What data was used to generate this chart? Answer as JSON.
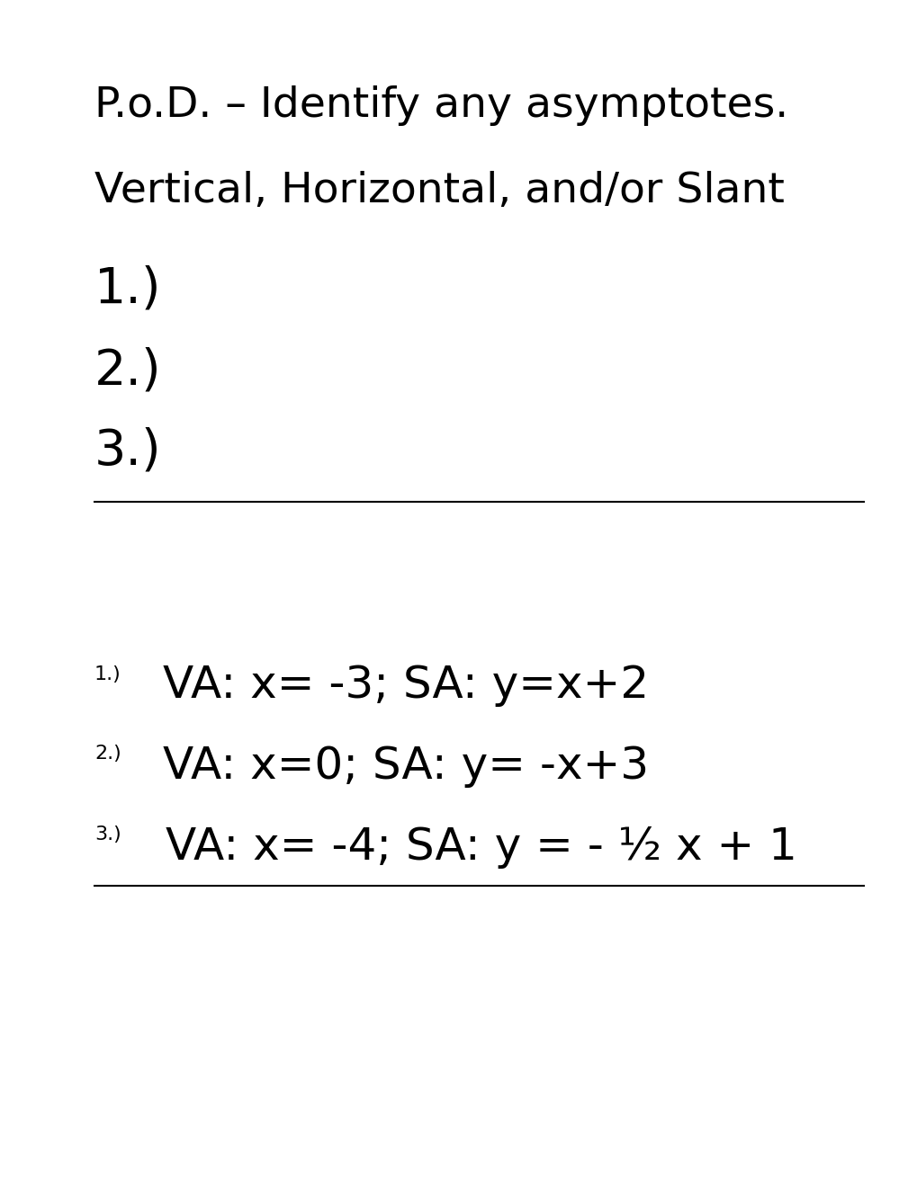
{
  "background_color": "#ffffff",
  "title_line1": "P.o.D. – Identify any asymptotes.",
  "title_line2": "Vertical, Horizontal, and/or Slant",
  "items": [
    "1.)",
    "2.)",
    "3.)"
  ],
  "answers": [
    "VA: x= -3; SA: y=x+2",
    "VA: x=0; SA: y= -x+3",
    "VA: x= -4; SA: y = - ½ x + 1"
  ],
  "answer_bg_color": "#00FFFF",
  "text_color": "#000000",
  "title_fontsize": 34,
  "item_fontsize": 40,
  "answer_fontsize": 36,
  "small_label_fontsize": 16,
  "fig_width": 10.2,
  "fig_height": 13.2,
  "dpi": 100
}
